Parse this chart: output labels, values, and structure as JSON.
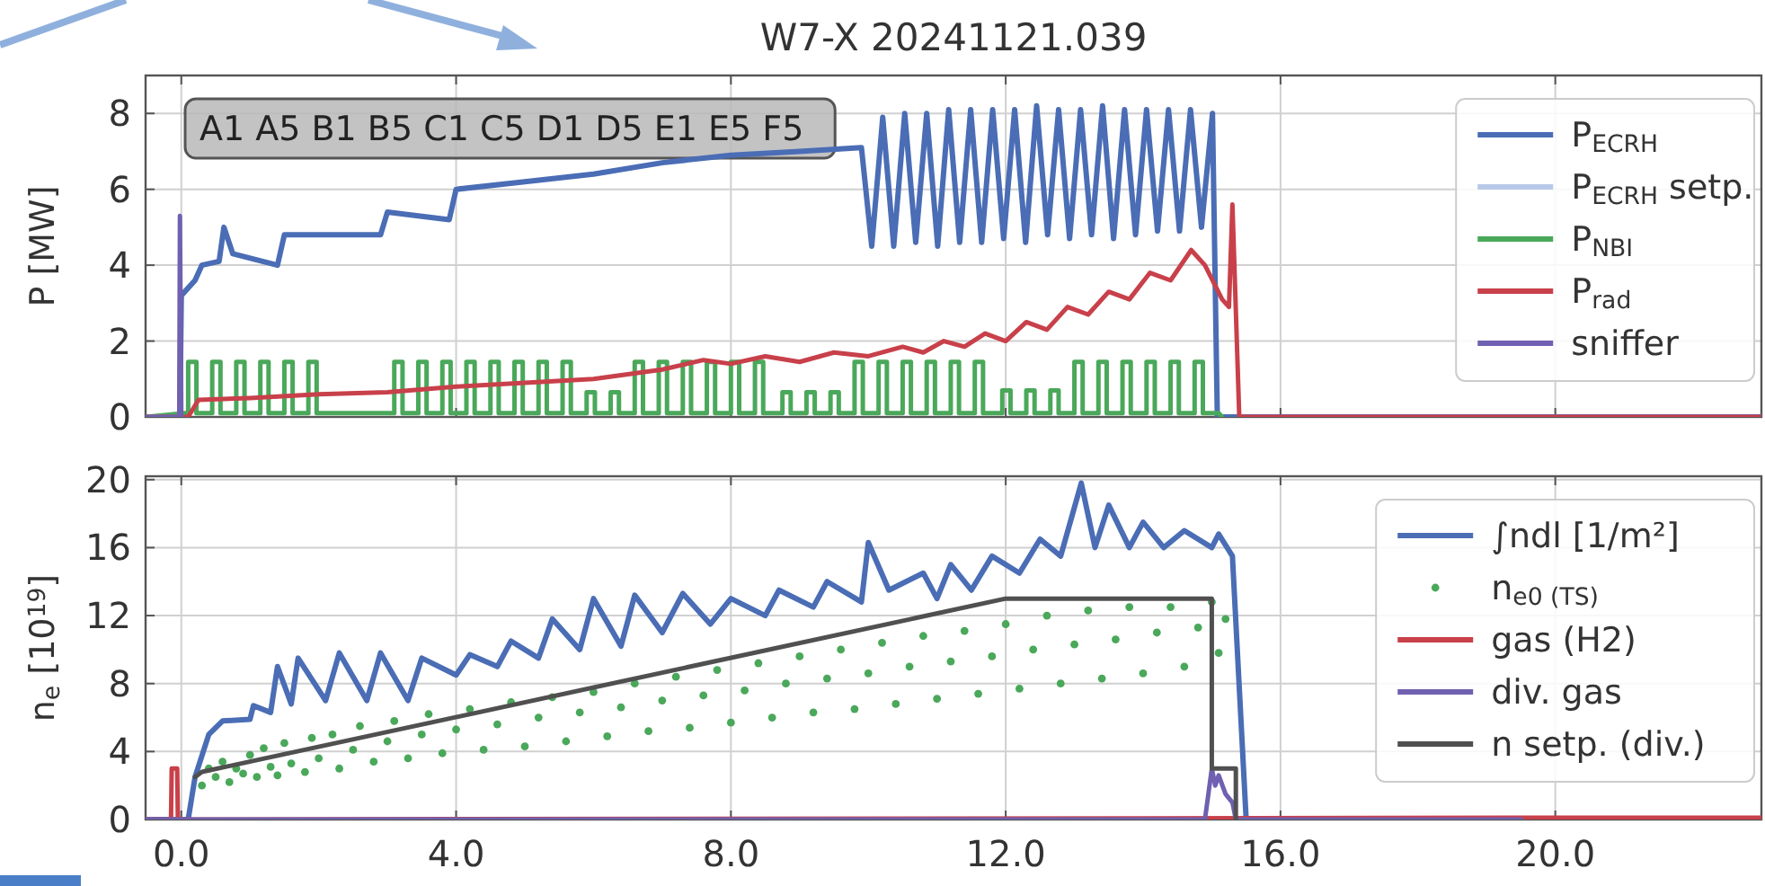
{
  "chart_data": [
    {
      "type": "line",
      "title": "W7-X 20241121.039",
      "ylabel": "P [MW]",
      "xlim": [
        -0.52,
        23.0
      ],
      "ylim": [
        0,
        9.0
      ],
      "xticks": [
        0,
        4,
        8,
        12,
        16,
        20
      ],
      "yticks": [
        0,
        2,
        4,
        6,
        8
      ],
      "tick_labels": "y",
      "grid": true,
      "legend": "top right",
      "line_style": "solid",
      "annotations": [
        "A1 A5 B1 B5 C1 C5 D1 D5 E1 E5 F5"
      ],
      "series": [
        {
          "name": "P$_{ECRH}$",
          "color": "#4a6db5",
          "x": [
            -0.52,
            -0.02,
            0.0,
            0.2,
            0.3,
            0.55,
            0.62,
            0.75,
            1.4,
            1.5,
            2.9,
            3.0,
            3.9,
            4.0,
            5.0,
            6.0,
            7.0,
            8.0,
            9.0,
            9.9,
            10.05,
            10.21,
            10.37,
            10.53,
            10.69,
            10.85,
            11.01,
            11.17,
            11.33,
            11.49,
            11.65,
            11.81,
            11.97,
            12.13,
            12.29,
            12.45,
            12.61,
            12.77,
            12.93,
            13.09,
            13.25,
            13.41,
            13.57,
            13.73,
            13.89,
            14.05,
            14.21,
            14.37,
            14.53,
            14.69,
            14.85,
            15.01,
            15.08,
            23.0
          ],
          "values": [
            0,
            0,
            3.2,
            3.6,
            4.0,
            4.1,
            5.0,
            4.3,
            4.0,
            4.8,
            4.8,
            5.4,
            5.2,
            6.0,
            6.2,
            6.4,
            6.7,
            6.9,
            7.0,
            7.1,
            4.5,
            7.9,
            4.5,
            8.0,
            4.6,
            8.0,
            4.5,
            8.1,
            4.6,
            8.1,
            4.6,
            8.1,
            4.7,
            8.1,
            4.6,
            8.2,
            4.8,
            8.1,
            4.7,
            8.1,
            4.8,
            8.2,
            4.7,
            8.1,
            4.8,
            8.1,
            4.9,
            8.1,
            4.9,
            8.1,
            5.0,
            8.0,
            0,
            0
          ]
        },
        {
          "name": "P$_{ECRH}$ setp.",
          "color": "#b8c8e8"
        },
        {
          "name": "P$_{NBI}$",
          "color": "#4aa85a",
          "x": [
            -0.52,
            0.05,
            0.1,
            0.1,
            0.22,
            0.22,
            0.45,
            0.45,
            0.57,
            0.57,
            0.8,
            0.8,
            0.92,
            0.92,
            1.15,
            1.15,
            1.27,
            1.27,
            1.5,
            1.5,
            1.62,
            1.62,
            1.85,
            1.85,
            1.97,
            1.97,
            3.1,
            3.1,
            3.22,
            3.22,
            3.45,
            3.45,
            3.57,
            3.57,
            3.8,
            3.8,
            3.92,
            3.92,
            4.15,
            4.15,
            4.27,
            4.27,
            4.5,
            4.5,
            4.62,
            4.62,
            4.85,
            4.85,
            4.97,
            4.97,
            5.2,
            5.2,
            5.32,
            5.32,
            5.55,
            5.55,
            5.67,
            5.67,
            5.9,
            5.9,
            6.02,
            6.02,
            6.25,
            6.25,
            6.37,
            6.37,
            6.6,
            6.6,
            6.72,
            6.72,
            6.95,
            6.95,
            7.07,
            7.07,
            7.3,
            7.3,
            7.42,
            7.42,
            7.65,
            7.65,
            7.77,
            7.77,
            8.0,
            8.0,
            8.12,
            8.12,
            8.35,
            8.35,
            8.47,
            8.47,
            8.75,
            8.75,
            8.87,
            8.87,
            9.1,
            9.1,
            9.22,
            9.22,
            9.45,
            9.45,
            9.57,
            9.57,
            9.8,
            9.8,
            9.92,
            9.92,
            10.15,
            10.15,
            10.27,
            10.27,
            10.5,
            10.5,
            10.62,
            10.62,
            10.85,
            10.85,
            10.97,
            10.97,
            11.2,
            11.2,
            11.32,
            11.32,
            11.55,
            11.55,
            11.67,
            11.67,
            11.95,
            11.95,
            12.07,
            12.07,
            12.3,
            12.3,
            12.42,
            12.42,
            12.65,
            12.65,
            12.77,
            12.77,
            13.0,
            13.0,
            13.12,
            13.12,
            13.35,
            13.35,
            13.47,
            13.47,
            13.7,
            13.7,
            13.82,
            13.82,
            14.05,
            14.05,
            14.17,
            14.17,
            14.4,
            14.4,
            14.52,
            14.52,
            14.75,
            14.75,
            14.87,
            14.87,
            15.1,
            15.15
          ],
          "values": [
            0,
            0.1,
            0.1,
            1.45,
            1.45,
            0.1,
            0.1,
            1.45,
            1.45,
            0.1,
            0.1,
            1.45,
            1.45,
            0.1,
            0.1,
            1.45,
            1.45,
            0.1,
            0.1,
            1.45,
            1.45,
            0.1,
            0.1,
            1.45,
            1.45,
            0.1,
            0.1,
            1.45,
            1.45,
            0.1,
            0.1,
            1.45,
            1.45,
            0.1,
            0.1,
            1.45,
            1.45,
            0.1,
            0.1,
            1.45,
            1.45,
            0.1,
            0.1,
            1.45,
            1.45,
            0.1,
            0.1,
            1.45,
            1.45,
            0.1,
            0.1,
            1.45,
            1.45,
            0.1,
            0.1,
            1.45,
            1.45,
            0.1,
            0.1,
            0.65,
            0.65,
            0.1,
            0.1,
            0.65,
            0.65,
            0.1,
            0.1,
            1.45,
            1.45,
            0.1,
            0.1,
            1.45,
            1.45,
            0.1,
            0.1,
            1.45,
            1.45,
            0.1,
            0.1,
            1.45,
            1.45,
            0.1,
            0.1,
            1.45,
            1.45,
            0.1,
            0.1,
            1.45,
            1.45,
            0.1,
            0.1,
            0.65,
            0.65,
            0.1,
            0.1,
            0.65,
            0.65,
            0.1,
            0.1,
            0.65,
            0.65,
            0.1,
            0.1,
            1.45,
            1.45,
            0.1,
            0.1,
            1.45,
            1.45,
            0.1,
            0.1,
            1.45,
            1.45,
            0.1,
            0.1,
            1.45,
            1.45,
            0.1,
            0.1,
            1.45,
            1.45,
            0.1,
            0.1,
            1.45,
            1.45,
            0.1,
            0.1,
            0.7,
            0.7,
            0.1,
            0.1,
            0.7,
            0.7,
            0.1,
            0.1,
            0.7,
            0.7,
            0.1,
            0.1,
            1.45,
            1.45,
            0.1,
            0.1,
            1.45,
            1.45,
            0.1,
            0.1,
            1.45,
            1.45,
            0.1,
            0.1,
            1.45,
            1.45,
            0.1,
            0.1,
            1.45,
            1.45,
            0.1,
            0.1,
            1.45,
            1.45,
            0.1,
            0.1,
            0
          ]
        },
        {
          "name": "P$_{rad}$",
          "color": "#c8404a",
          "x": [
            -0.52,
            0.1,
            0.25,
            1.0,
            2.0,
            3.0,
            4.0,
            5.0,
            6.0,
            7.0,
            7.6,
            8.0,
            8.5,
            9.0,
            9.5,
            10.0,
            10.5,
            10.8,
            11.1,
            11.4,
            11.7,
            12.0,
            12.3,
            12.6,
            12.9,
            13.2,
            13.5,
            13.8,
            14.1,
            14.4,
            14.7,
            14.9,
            15.15,
            15.25,
            15.3,
            15.4,
            23.0
          ],
          "values": [
            0,
            0,
            0.45,
            0.5,
            0.6,
            0.65,
            0.8,
            0.9,
            1.0,
            1.25,
            1.5,
            1.4,
            1.6,
            1.45,
            1.7,
            1.6,
            1.85,
            1.7,
            2.0,
            1.85,
            2.2,
            2.0,
            2.5,
            2.3,
            2.9,
            2.7,
            3.3,
            3.1,
            3.8,
            3.6,
            4.4,
            4.0,
            3.1,
            2.9,
            5.6,
            0,
            0
          ]
        },
        {
          "name": "sniffer",
          "color": "#7060b0",
          "x": [
            -0.52,
            -0.03,
            -0.02,
            0.0,
            0.01
          ],
          "values": [
            0,
            0,
            5.3,
            0,
            0
          ]
        }
      ]
    },
    {
      "type": "line",
      "ylabel": "n$_{e}$ [10$^{19}$]",
      "xlim": [
        -0.52,
        23.0
      ],
      "ylim": [
        0,
        20.2
      ],
      "xticks": [
        {
          "value": 0,
          "label": "0.0"
        },
        {
          "value": 4,
          "label": "4.0"
        },
        {
          "value": 8,
          "label": "8.0"
        },
        {
          "value": 12,
          "label": "12.0"
        },
        {
          "value": 16,
          "label": "16.0"
        },
        {
          "value": 20,
          "label": "20.0"
        }
      ],
      "yticks": [
        0,
        4,
        8,
        12,
        16,
        20
      ],
      "grid": true,
      "legend": "top right",
      "line_style": "solid",
      "series": [
        {
          "name": "∫ndl [1/m²]",
          "color": "#4a6db5",
          "x": [
            -0.52,
            0.1,
            0.2,
            0.4,
            0.6,
            1.0,
            1.05,
            1.3,
            1.4,
            1.6,
            1.7,
            2.1,
            2.3,
            2.7,
            2.9,
            3.3,
            3.5,
            4.0,
            4.2,
            4.6,
            4.8,
            5.2,
            5.4,
            5.8,
            6.0,
            6.4,
            6.6,
            7.0,
            7.3,
            7.7,
            8.0,
            8.5,
            8.7,
            9.2,
            9.4,
            9.9,
            10.0,
            10.3,
            10.8,
            11.0,
            11.2,
            11.5,
            11.8,
            12.2,
            12.5,
            12.8,
            13.1,
            13.3,
            13.5,
            13.8,
            14.0,
            14.3,
            14.6,
            15.0,
            15.1,
            15.3,
            15.5,
            23.0
          ],
          "values": [
            0,
            0,
            2.5,
            5.0,
            5.8,
            5.9,
            6.7,
            6.3,
            9.0,
            6.8,
            9.5,
            7.0,
            9.8,
            7.0,
            9.8,
            7.0,
            9.5,
            8.5,
            9.7,
            9.0,
            10.5,
            9.5,
            11.8,
            10.0,
            13.0,
            10.2,
            13.2,
            11.0,
            13.3,
            11.5,
            13.0,
            12.0,
            13.5,
            12.5,
            14.0,
            12.8,
            16.3,
            13.5,
            14.5,
            13.0,
            15.0,
            13.5,
            15.5,
            14.5,
            16.5,
            15.5,
            19.8,
            16.0,
            18.5,
            16.0,
            17.5,
            16.0,
            17.0,
            16.0,
            16.8,
            15.5,
            0,
            0
          ]
        },
        {
          "type": "scatter",
          "marker": "circle",
          "name": "n$_{e0 (TS)}$",
          "color": "#4aa85a",
          "x": [
            0.3,
            0.4,
            0.5,
            0.6,
            0.7,
            0.8,
            0.9,
            1.0,
            1.1,
            1.2,
            1.3,
            1.4,
            1.5,
            1.6,
            1.8,
            1.9,
            2.0,
            2.2,
            2.3,
            2.5,
            2.6,
            2.8,
            3.0,
            3.1,
            3.3,
            3.5,
            3.6,
            3.8,
            4.0,
            4.2,
            4.4,
            4.6,
            4.8,
            5.0,
            5.2,
            5.4,
            5.6,
            5.8,
            6.0,
            6.2,
            6.4,
            6.6,
            6.8,
            7.0,
            7.2,
            7.4,
            7.6,
            7.8,
            8.0,
            8.2,
            8.4,
            8.6,
            8.8,
            9.0,
            9.2,
            9.4,
            9.6,
            9.8,
            10.0,
            10.2,
            10.4,
            10.6,
            10.8,
            11.0,
            11.2,
            11.4,
            11.6,
            11.8,
            12.0,
            12.2,
            12.4,
            12.6,
            12.8,
            13.0,
            13.2,
            13.4,
            13.6,
            13.8,
            14.0,
            14.2,
            14.4,
            14.6,
            14.8,
            15.0,
            15.1,
            15.2
          ],
          "values": [
            2.0,
            3.0,
            2.5,
            3.4,
            2.2,
            3.0,
            2.7,
            3.8,
            2.5,
            4.2,
            3.1,
            2.6,
            4.5,
            3.3,
            2.8,
            4.8,
            3.6,
            5.0,
            3.0,
            4.1,
            5.5,
            3.4,
            4.6,
            5.8,
            3.6,
            5.0,
            6.2,
            3.9,
            5.3,
            6.5,
            4.1,
            5.6,
            6.9,
            4.3,
            6.0,
            7.2,
            4.6,
            6.3,
            7.5,
            4.9,
            6.6,
            8.0,
            5.2,
            7.0,
            8.4,
            5.4,
            7.3,
            8.8,
            5.7,
            7.6,
            9.2,
            6.0,
            8.0,
            9.6,
            6.3,
            8.3,
            10.0,
            6.5,
            8.6,
            10.4,
            6.8,
            9.0,
            10.8,
            7.1,
            9.3,
            11.1,
            7.4,
            9.6,
            11.5,
            7.7,
            10.0,
            12.0,
            8.0,
            10.3,
            12.3,
            8.3,
            10.6,
            12.5,
            8.6,
            11.0,
            12.5,
            9.0,
            11.3,
            12.8,
            9.8,
            11.8
          ]
        },
        {
          "name": "gas (H2)",
          "color": "#c8404a",
          "x": [
            -0.52,
            -0.15,
            -0.14,
            -0.06,
            -0.05,
            19.5,
            23.0
          ],
          "values": [
            0,
            0,
            3.0,
            3.0,
            0,
            0.1,
            0.1
          ]
        },
        {
          "name": "div. gas",
          "color": "#7060b0",
          "x": [
            -0.52,
            14.9,
            15.0,
            15.05,
            15.1,
            15.2,
            15.3,
            15.35,
            19.5
          ],
          "values": [
            0,
            0,
            3.0,
            2.0,
            2.6,
            1.5,
            1.0,
            0,
            0
          ]
        },
        {
          "name": "n setp. (div.)",
          "color": "#505050",
          "x": [
            0.2,
            0.3,
            12.0,
            15.0,
            15.0,
            15.35,
            15.35
          ],
          "values": [
            2.5,
            2.8,
            13.0,
            13.0,
            3.0,
            3.0,
            0
          ]
        }
      ]
    }
  ]
}
